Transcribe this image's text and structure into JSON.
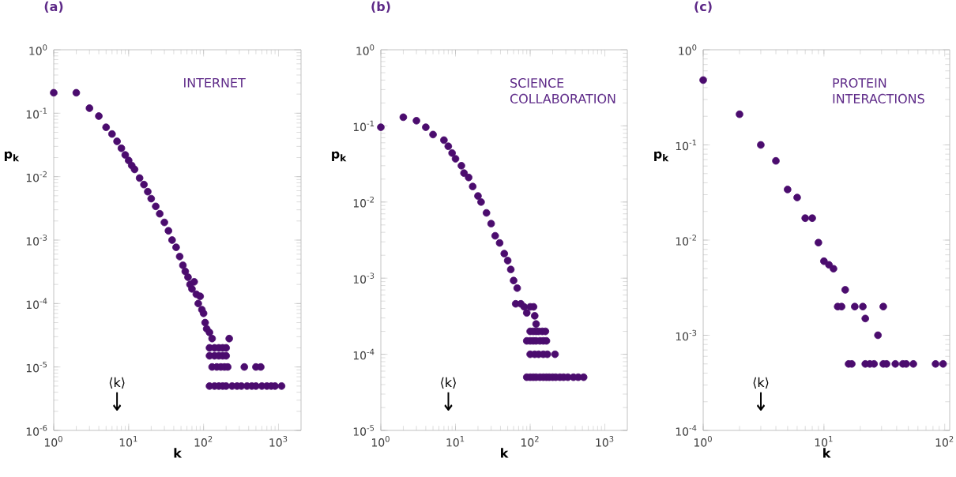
{
  "chart_data": [
    {
      "type": "scatter",
      "title": "(a)",
      "xlabel": "k",
      "ylabel": "p$_{k}$",
      "log": "xy",
      "marker": "circle",
      "color": "#4b0c6e",
      "annotations": [
        "INTERNET",
        "⟨k⟩",
        "↓"
      ],
      "xlim": [
        1,
        2000
      ],
      "ylim": [
        1e-06,
        1
      ],
      "xticks": [
        {
          "value": 1,
          "label": "10$^{0}$"
        },
        {
          "value": 10,
          "label": "10$^{1}$"
        },
        {
          "value": 100,
          "label": "10$^{2}$"
        },
        {
          "value": 1000,
          "label": "10$^{3}$"
        }
      ],
      "yticks": [
        {
          "value": 1e-06,
          "label": "10$^{-6}$"
        },
        {
          "value": 1e-05,
          "label": "10$^{-5}$"
        },
        {
          "value": 0.0001,
          "label": "10$^{-4}$"
        },
        {
          "value": 0.001,
          "label": "10$^{-3}$"
        },
        {
          "value": 0.01,
          "label": "10$^{-2}$"
        },
        {
          "value": 0.1,
          "label": "10$^{-1}$"
        },
        {
          "value": 1,
          "label": "10$^{0}$"
        }
      ],
      "x": [
        1,
        2,
        3,
        4,
        5,
        6,
        7,
        8,
        9,
        10,
        11,
        12,
        14,
        16,
        18,
        20,
        23,
        26,
        30,
        34,
        38,
        43,
        48,
        53,
        57,
        62,
        66,
        70,
        75,
        80,
        85,
        90,
        95,
        100,
        105,
        110,
        120,
        130,
        220,
        120,
        140,
        160,
        180,
        200,
        120,
        140,
        160,
        180,
        200,
        130,
        150,
        170,
        190,
        210,
        350,
        500,
        580,
        120,
        140,
        160,
        180,
        200,
        240,
        280,
        320,
        380,
        440,
        500,
        600,
        700,
        800,
        900,
        1100
      ],
      "values": [
        0.21,
        0.21,
        0.12,
        0.09,
        0.06,
        0.047,
        0.036,
        0.028,
        0.022,
        0.018,
        0.015,
        0.013,
        0.0095,
        0.0075,
        0.0058,
        0.0045,
        0.0034,
        0.0026,
        0.0019,
        0.0014,
        0.001,
        0.00077,
        0.00055,
        0.0004,
        0.00032,
        0.00026,
        0.0002,
        0.00017,
        0.00022,
        0.00014,
        0.0001,
        0.00013,
        8e-05,
        7e-05,
        5e-05,
        4e-05,
        3.5e-05,
        2.8e-05,
        2.8e-05,
        2e-05,
        2e-05,
        2e-05,
        2e-05,
        2e-05,
        1.5e-05,
        1.5e-05,
        1.5e-05,
        1.5e-05,
        1.5e-05,
        1e-05,
        1e-05,
        1e-05,
        1e-05,
        1e-05,
        1e-05,
        1e-05,
        1e-05,
        5e-06,
        5e-06,
        5e-06,
        5e-06,
        5e-06,
        5e-06,
        5e-06,
        5e-06,
        5e-06,
        5e-06,
        5e-06,
        5e-06,
        5e-06,
        5e-06,
        5e-06,
        5e-06
      ]
    },
    {
      "type": "scatter",
      "title": "(b)",
      "xlabel": "k",
      "ylabel": "p$_{k}$",
      "log": "xy",
      "marker": "circle",
      "color": "#4b0c6e",
      "annotations": [
        "SCIENCE COLLABORATION",
        "⟨k⟩",
        "↓"
      ],
      "xlim": [
        1,
        2000
      ],
      "ylim": [
        1e-05,
        1
      ],
      "xticks": [
        {
          "value": 1,
          "label": "10$^{0}$"
        },
        {
          "value": 10,
          "label": "10$^{1}$"
        },
        {
          "value": 100,
          "label": "10$^{2}$"
        },
        {
          "value": 1000,
          "label": "10$^{3}$"
        }
      ],
      "yticks": [
        {
          "value": 1e-05,
          "label": "10$^{-5}$"
        },
        {
          "value": 0.0001,
          "label": "10$^{-4}$"
        },
        {
          "value": 0.001,
          "label": "10$^{-3}$"
        },
        {
          "value": 0.01,
          "label": "10$^{-2}$"
        },
        {
          "value": 0.1,
          "label": "10$^{-1}$"
        },
        {
          "value": 1,
          "label": "10$^{0}$"
        }
      ],
      "x": [
        1,
        2,
        3,
        4,
        5,
        7,
        8,
        9,
        10,
        12,
        13,
        15,
        17,
        20,
        22,
        26,
        30,
        34,
        39,
        45,
        50,
        55,
        60,
        67,
        64,
        75,
        83,
        100,
        111,
        115,
        90,
        120,
        100,
        110,
        120,
        130,
        145,
        160,
        90,
        100,
        110,
        120,
        135,
        150,
        165,
        100,
        115,
        130,
        150,
        170,
        215,
        90,
        100,
        110,
        120,
        135,
        150,
        165,
        180,
        200,
        220,
        250,
        280,
        320,
        380,
        440,
        520
      ],
      "values": [
        0.096,
        0.13,
        0.117,
        0.096,
        0.077,
        0.065,
        0.054,
        0.044,
        0.037,
        0.03,
        0.024,
        0.021,
        0.016,
        0.012,
        0.01,
        0.0072,
        0.0052,
        0.0036,
        0.0029,
        0.0021,
        0.0017,
        0.0013,
        0.00093,
        0.00074,
        0.00046,
        0.00046,
        0.00042,
        0.00042,
        0.00042,
        0.00032,
        0.00035,
        0.00025,
        0.0002,
        0.0002,
        0.0002,
        0.0002,
        0.0002,
        0.0002,
        0.00015,
        0.00015,
        0.00015,
        0.00015,
        0.00015,
        0.00015,
        0.00015,
        0.0001,
        0.0001,
        0.0001,
        0.0001,
        0.0001,
        0.0001,
        5e-05,
        5e-05,
        5e-05,
        5e-05,
        5e-05,
        5e-05,
        5e-05,
        5e-05,
        5e-05,
        5e-05,
        5e-05,
        5e-05,
        5e-05,
        5e-05,
        5e-05,
        5e-05
      ]
    },
    {
      "type": "scatter",
      "title": "(c)",
      "xlabel": "k",
      "ylabel": "p$_{k}$",
      "log": "xy",
      "marker": "circle",
      "color": "#4b0c6e",
      "annotations": [
        "PROTEIN INTERACTIONS",
        "⟨k⟩",
        "↓"
      ],
      "xlim": [
        1,
        110
      ],
      "ylim": [
        0.0001,
        1
      ],
      "xticks": [
        {
          "value": 1,
          "label": "10$^{0}$"
        },
        {
          "value": 10,
          "label": "10$^{1}$"
        },
        {
          "value": 100,
          "label": "10$^{2}$"
        }
      ],
      "yticks": [
        {
          "value": 0.0001,
          "label": "10$^{-4}$"
        },
        {
          "value": 0.001,
          "label": "10$^{-3}$"
        },
        {
          "value": 0.01,
          "label": "10$^{-2}$"
        },
        {
          "value": 0.1,
          "label": "10$^{-1}$"
        },
        {
          "value": 1,
          "label": "10$^{0}$"
        }
      ],
      "x": [
        1,
        2,
        3,
        4,
        5,
        6,
        7,
        8,
        9,
        10,
        11,
        12,
        15,
        13,
        14,
        18,
        21,
        22,
        28,
        31,
        16,
        17,
        22,
        24,
        26,
        31,
        33,
        39,
        45,
        48,
        55,
        84,
        97
      ],
      "values": [
        0.48,
        0.21,
        0.1,
        0.068,
        0.034,
        0.028,
        0.017,
        0.017,
        0.0094,
        0.006,
        0.0055,
        0.005,
        0.003,
        0.002,
        0.002,
        0.002,
        0.002,
        0.0015,
        0.001,
        0.002,
        0.0005,
        0.0005,
        0.0005,
        0.0005,
        0.0005,
        0.0005,
        0.0005,
        0.0005,
        0.0005,
        0.0005,
        0.0005,
        0.0005,
        0.0005
      ]
    }
  ]
}
